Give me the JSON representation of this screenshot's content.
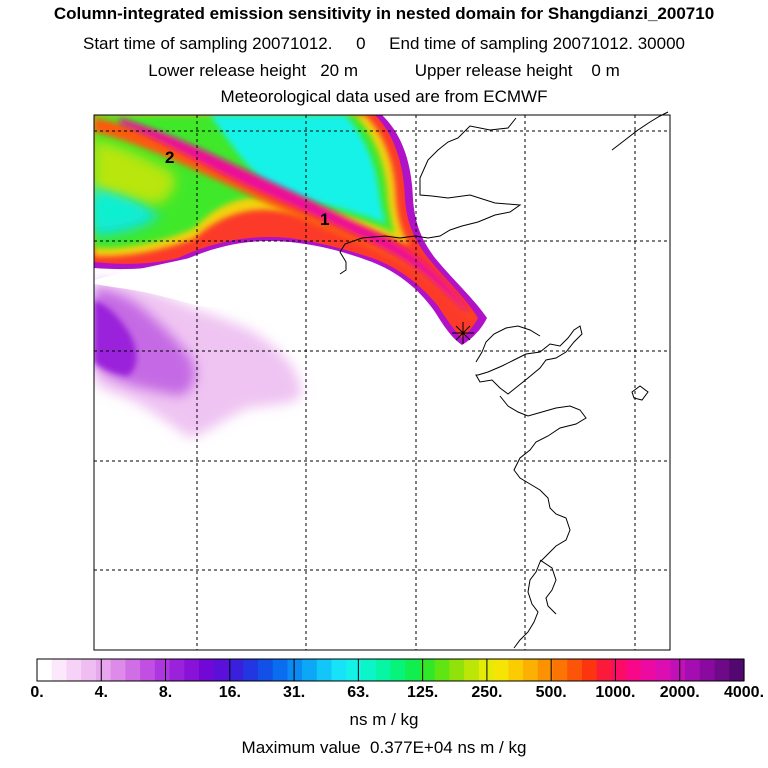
{
  "header": {
    "title": "Column-integrated emission sensitivity in nested domain for Shangdianzi_200710",
    "sampling_line": "Start time of sampling 20071012.     0     End time of sampling 20071012. 30000",
    "release_line": "Lower release height   20 m            Upper release height    0 m",
    "met_line": "Meteorological data used are from ECMWF"
  },
  "map": {
    "region_labels": [
      "2",
      "1"
    ]
  },
  "colorbar": {
    "tick_labels": [
      "0.",
      "4.",
      "8.",
      "16.",
      "31.",
      "63.",
      "125.",
      "250.",
      "500.",
      "1000.",
      "2000.",
      "4000."
    ],
    "colors": [
      "#ffffff",
      "#fbe8fb",
      "#f5d2f6",
      "#efbdf2",
      "#e8a6ee",
      "#de8ae9",
      "#d06ee6",
      "#c150e2",
      "#ae36de",
      "#9a22da",
      "#8812d8",
      "#7208d6",
      "#5a10d8",
      "#3a20dc",
      "#2236e2",
      "#1250e8",
      "#0a6cee",
      "#0a8af2",
      "#0ca8f6",
      "#12c6f8",
      "#18e2f8",
      "#14f2e8",
      "#0af6c8",
      "#06f6a4",
      "#06f47a",
      "#10ee50",
      "#30e828",
      "#60e412",
      "#90e20a",
      "#bce608",
      "#e2ec06",
      "#f6e404",
      "#fccc02",
      "#fcb002",
      "#fc9202",
      "#fc7404",
      "#fc5408",
      "#fc3410",
      "#fc1a3a",
      "#fc0c64",
      "#f80888",
      "#ec0aa2",
      "#dc0eb2",
      "#c210b8",
      "#a40eb0",
      "#8a0aa0",
      "#6e0a88",
      "#520870"
    ],
    "units": "ns m / kg",
    "maximum_line": "Maximum value  0.377E+04 ns m / kg"
  }
}
